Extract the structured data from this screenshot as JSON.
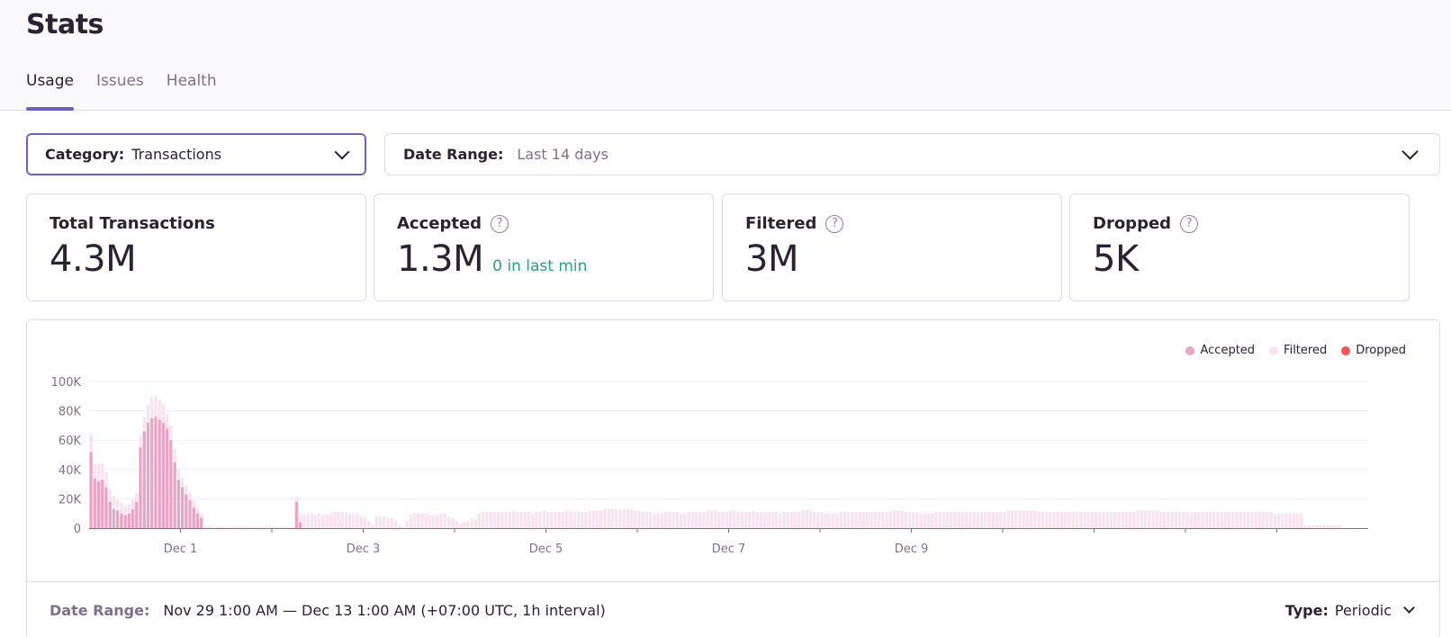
{
  "page": {
    "title": "Stats"
  },
  "tabs": [
    {
      "label": "Usage",
      "active": true
    },
    {
      "label": "Issues",
      "active": false
    },
    {
      "label": "Health",
      "active": false
    }
  ],
  "filters": {
    "category": {
      "label": "Category:",
      "value": "Transactions"
    },
    "date_range": {
      "label": "Date Range:",
      "value": "Last 14 days"
    }
  },
  "cards": [
    {
      "title": "Total Transactions",
      "value": "4.3M",
      "sub": "",
      "help": false
    },
    {
      "title": "Accepted",
      "value": "1.3M",
      "sub": "0 in last min",
      "help": true
    },
    {
      "title": "Filtered",
      "value": "3M",
      "sub": "",
      "help": true
    },
    {
      "title": "Dropped",
      "value": "5K",
      "sub": "",
      "help": true
    }
  ],
  "legend": [
    {
      "label": "Accepted",
      "color": "#e9a6c4"
    },
    {
      "label": "Filtered",
      "color": "#f9e3ee"
    },
    {
      "label": "Dropped",
      "color": "#f55459"
    }
  ],
  "footer": {
    "date_range_label": "Date Range:",
    "date_range_value": "Nov 29 1:00 AM — Dec 13 1:00 AM (+07:00 UTC, 1h interval)",
    "type_label": "Type:",
    "type_value": "Periodic"
  },
  "chart_data": {
    "type": "bar",
    "stacked": true,
    "ylim": [
      0,
      100000
    ],
    "y_ticks": [
      "0",
      "20K",
      "40K",
      "60K",
      "80K",
      "100K"
    ],
    "x_tick_labels": [
      "Dec 1",
      "Dec 3",
      "Dec 5",
      "Dec 7",
      "Dec 9"
    ],
    "x_range_days": 14,
    "interval_hours": 1,
    "legend_position": "top-right",
    "series": [
      {
        "name": "Accepted",
        "color": "#e9a6c4",
        "values": [
          52000,
          34000,
          32000,
          33000,
          28000,
          18000,
          13000,
          12000,
          10000,
          9000,
          10000,
          13000,
          18000,
          55000,
          66000,
          72000,
          75000,
          76000,
          74000,
          72000,
          68000,
          60000,
          45000,
          33000,
          28000,
          23000,
          19000,
          14000,
          10000,
          7000,
          0,
          0,
          0,
          0,
          0,
          0,
          0,
          0,
          0,
          0,
          0,
          0,
          0,
          0,
          0,
          0,
          0,
          0,
          0,
          0,
          0,
          0,
          0,
          0,
          18000,
          4000,
          0
        ]
      },
      {
        "name": "Filtered",
        "color": "#f9e3ee",
        "values": [
          12000,
          9000,
          12000,
          11000,
          10000,
          9000,
          9000,
          7000,
          7000,
          6000,
          6000,
          6000,
          6000,
          8000,
          10000,
          12000,
          14000,
          14000,
          13000,
          12000,
          10000,
          10000,
          9000,
          7000,
          6000,
          6000,
          5000,
          5000,
          4000,
          3000,
          1500,
          1200,
          1000,
          1000,
          1000,
          1000,
          1000,
          1000,
          1000,
          1000,
          1000,
          1000,
          1000,
          1000,
          1000,
          1000,
          1000,
          1000,
          1000,
          1000,
          1000,
          1000,
          1000,
          1000,
          3000,
          5000,
          9000,
          10000,
          10000,
          9000,
          10000,
          9000,
          9000,
          10000,
          11000,
          11000,
          11000,
          11000,
          10000,
          10000,
          10000,
          8000,
          7000,
          5000,
          2000,
          8000,
          8000,
          8000,
          7000,
          7000,
          5000,
          2000,
          1000,
          5000,
          9000,
          10000,
          10000,
          10000,
          10000,
          9000,
          9000,
          9000,
          10000,
          10000,
          8000,
          7000,
          5000,
          3000,
          4000,
          5000,
          7000,
          6000,
          10000,
          11000,
          11000,
          11000,
          11000,
          11000,
          11000,
          11000,
          11000,
          12000,
          11000,
          11000,
          11000,
          11000,
          10000,
          11000,
          11000,
          12000,
          11000,
          11000,
          11000,
          11000,
          11000,
          12000,
          12000,
          11000,
          12000,
          11000,
          11000,
          12000,
          12000,
          12000,
          12000,
          13000,
          13000,
          13000,
          13000,
          13000,
          13000,
          13000,
          13000,
          12000,
          12000,
          11000,
          11000,
          11000,
          10000,
          10000,
          10000,
          11000,
          11000,
          11000,
          11000,
          10000,
          10000,
          11000,
          11000,
          11000,
          11000,
          11000,
          12000,
          12000,
          12000,
          11000,
          11000,
          11000,
          12000,
          12000,
          11000,
          11000,
          11000,
          11000,
          12000,
          11000,
          11000,
          11000,
          11000,
          11000,
          11000,
          10000,
          11000,
          11000,
          11000,
          11000,
          11000,
          12000,
          12000,
          12000,
          11000,
          11000,
          11000,
          10000,
          10000,
          10000,
          10000,
          11000,
          11000,
          11000,
          11000,
          11000,
          11000,
          11000,
          11000,
          11000,
          11000,
          11000,
          11000,
          11000,
          12000,
          12000,
          12000,
          12000,
          11000,
          11000,
          11000,
          11000,
          10000,
          10000,
          10000,
          10000,
          11000,
          11000,
          11000,
          11000,
          11000,
          11000,
          11000,
          11000,
          11000,
          11000,
          11000,
          11000,
          11000,
          11000,
          11000,
          11000,
          11000,
          11000,
          11000,
          12000,
          12000,
          12000,
          12000,
          12000,
          12000,
          12000,
          12000,
          11000,
          11000,
          11000,
          11000,
          11000,
          11000,
          11000,
          11000,
          11000,
          11000,
          11000,
          11000,
          11000,
          11000,
          11000,
          11000,
          11000,
          11000,
          11000,
          11000,
          11000,
          11000,
          11000,
          11000,
          11000,
          11000,
          12000,
          12000,
          12000,
          12000,
          12000,
          12000,
          11000,
          11000,
          11000,
          11000,
          11000,
          11000,
          11000,
          11000,
          11000,
          11000,
          11000,
          11000,
          11000,
          11000,
          11000,
          11000,
          11000,
          11000,
          11000,
          11000,
          11000,
          11000,
          11000,
          11000,
          11000,
          11000,
          11000,
          11000,
          11000,
          11000,
          10000,
          10000,
          10000,
          10000,
          10000,
          10000,
          10000,
          10000,
          2000,
          2000,
          2000,
          2000,
          2000,
          2000,
          2000,
          2000,
          2000,
          2000
        ]
      },
      {
        "name": "Dropped",
        "color": "#f55459",
        "values": [
          0
        ]
      }
    ]
  }
}
